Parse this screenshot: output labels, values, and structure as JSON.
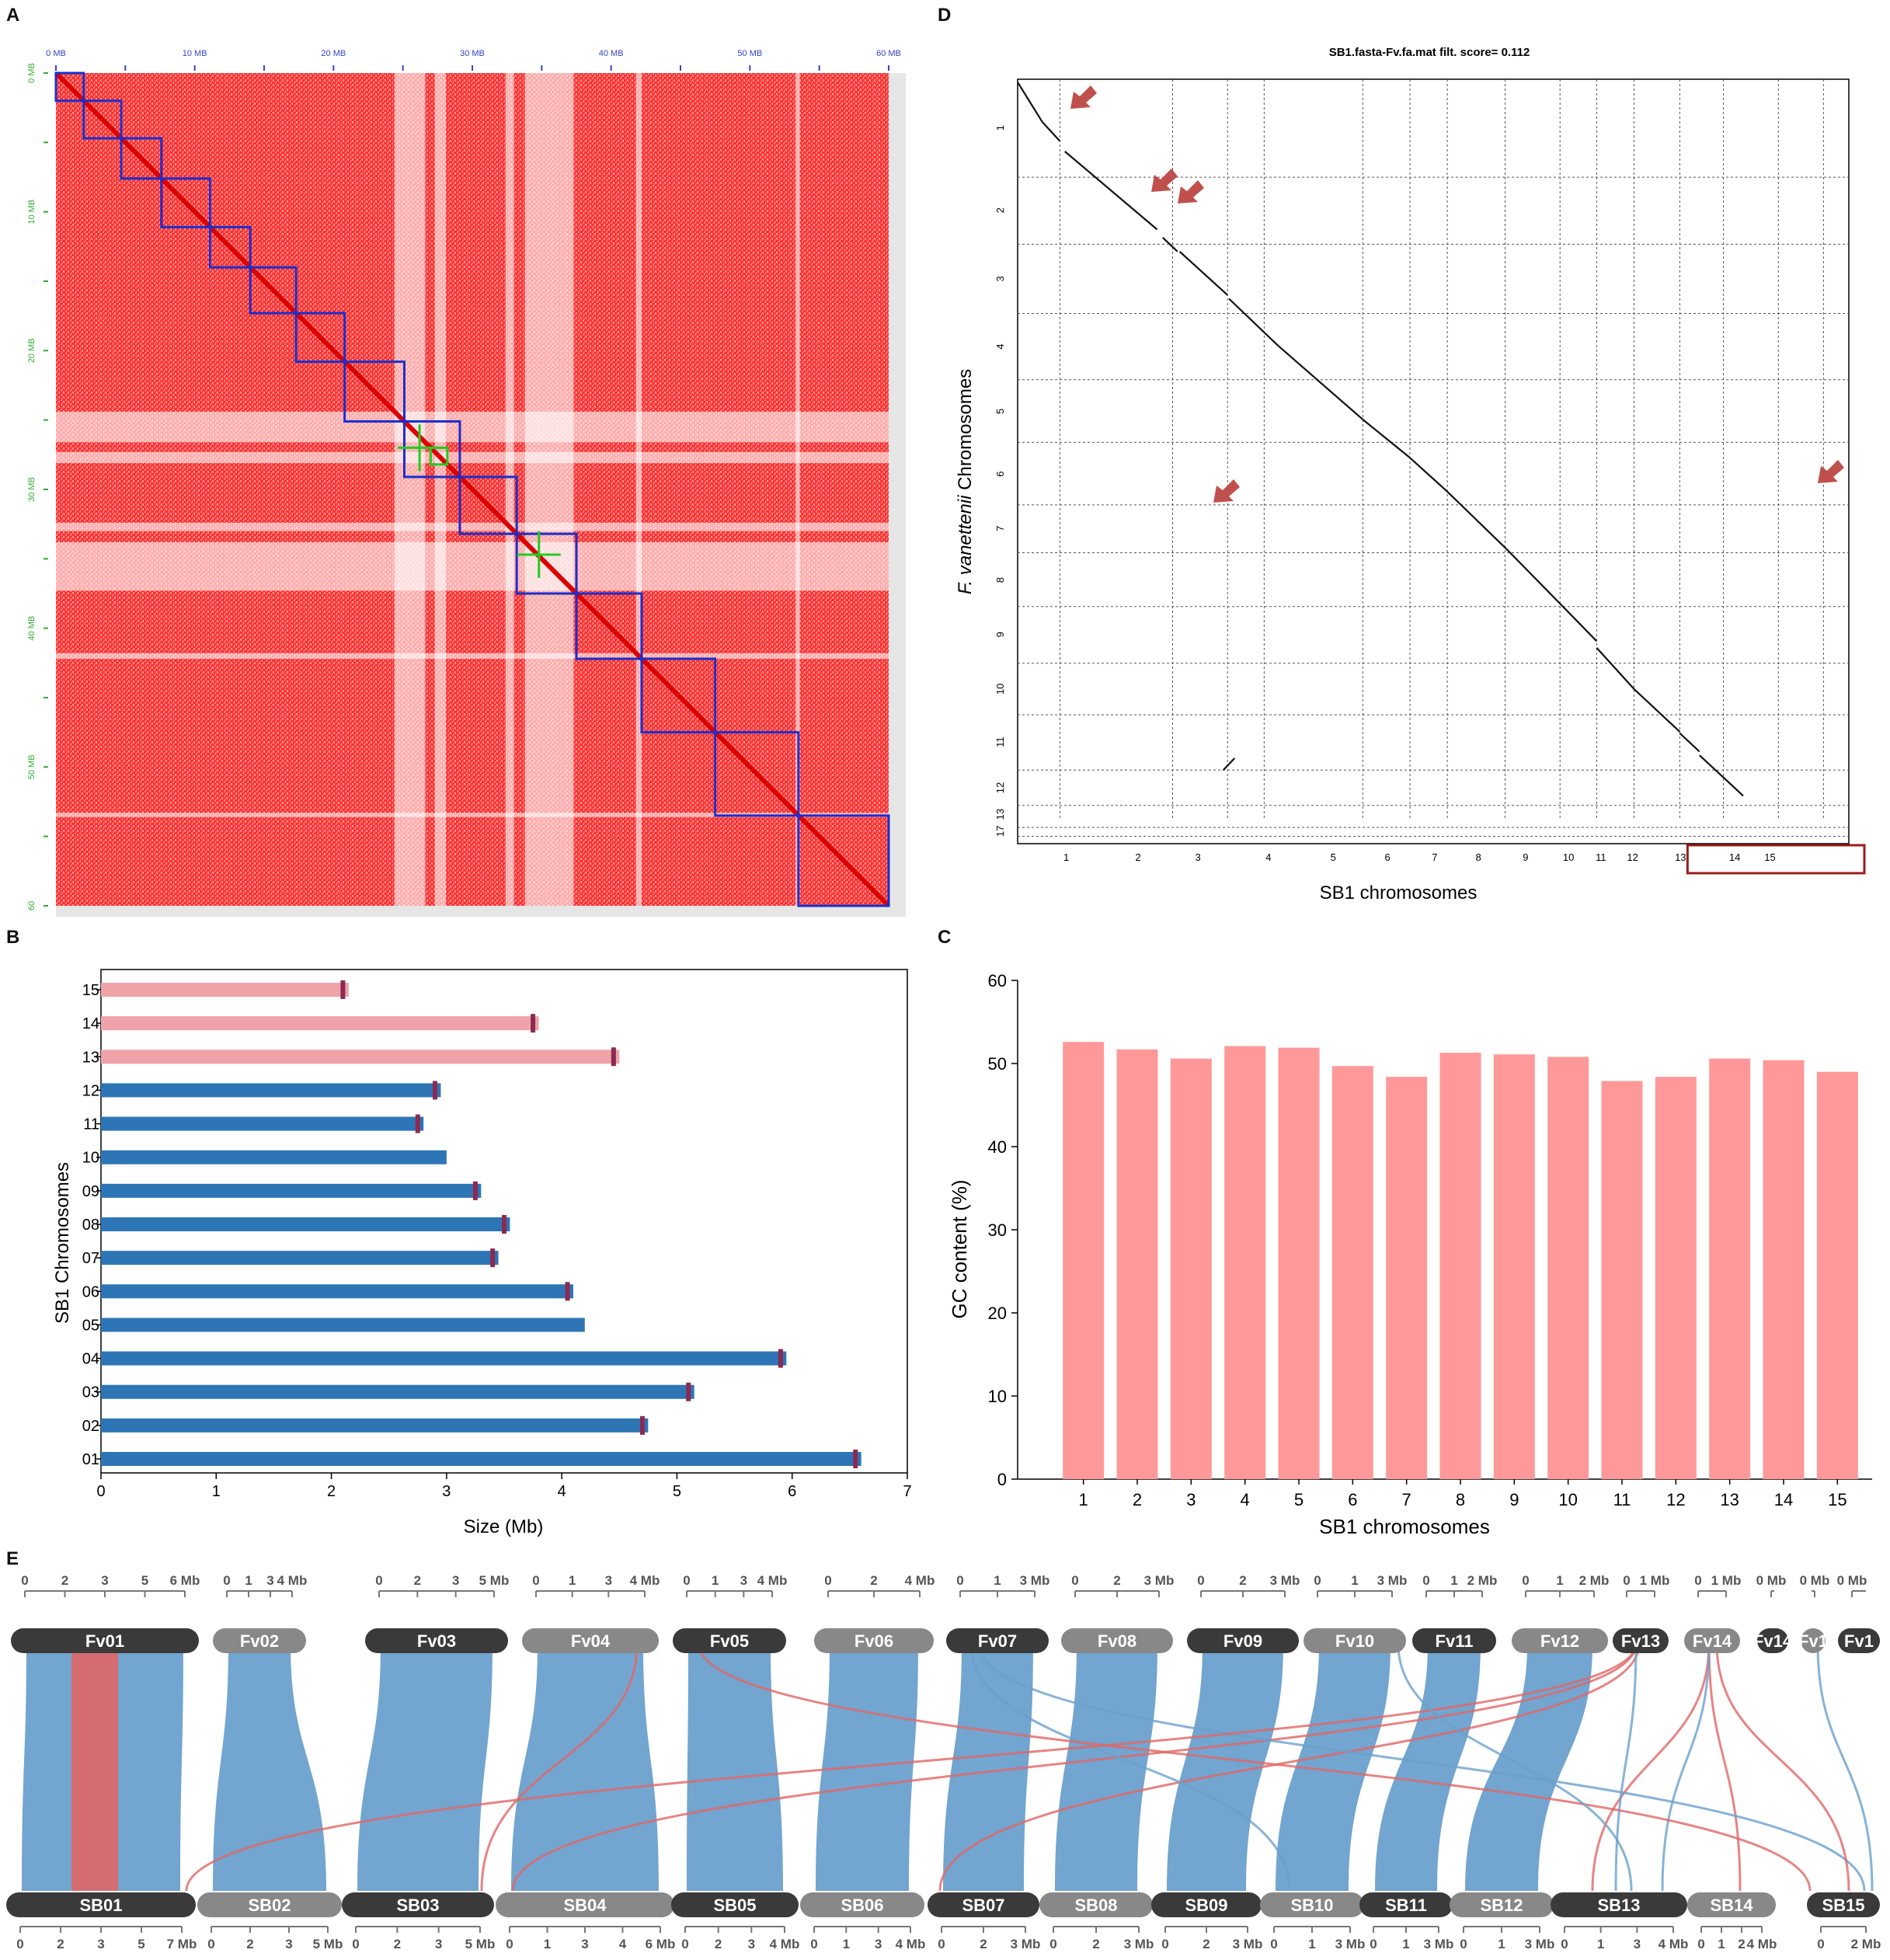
{
  "panels": {
    "A": {
      "letter": "A",
      "tick_labels": [
        "0 MB",
        "10 MB",
        "20 MB",
        "30 MB",
        "40 MB",
        "50 MB",
        "60 MB"
      ],
      "left_labels": [
        "0 MB",
        "10 MB",
        "20 MB",
        "30 MB",
        "40 MB",
        "50 MB",
        "60"
      ],
      "chrom_boundaries_mb": [
        0,
        2,
        4.7,
        7.6,
        11.1,
        14.0,
        17.3,
        20.8,
        25.1,
        29.1,
        33.2,
        37.5,
        42.2,
        47.5,
        53.5,
        60
      ]
    },
    "B": {
      "letter": "B"
    },
    "C": {
      "letter": "C"
    },
    "D": {
      "letter": "D"
    },
    "E": {
      "letter": "E"
    }
  },
  "chart_data": [
    {
      "panel": "B",
      "type": "bar",
      "orientation": "horizontal",
      "xlabel": "Size (Mb)",
      "ylabel": "SB1 Chromosomes",
      "xlim": [
        0,
        7
      ],
      "xticks": [
        "0",
        "1",
        "2",
        "3",
        "4",
        "5",
        "6",
        "7"
      ],
      "categories": [
        "01",
        "02",
        "03",
        "04",
        "05",
        "06",
        "07",
        "08",
        "09",
        "10",
        "11",
        "12",
        "13",
        "14",
        "15"
      ],
      "values": [
        6.6,
        4.75,
        5.15,
        5.95,
        4.2,
        4.1,
        3.45,
        3.55,
        3.3,
        3.0,
        2.8,
        2.95,
        4.5,
        3.8,
        2.15
      ],
      "centromere_mb": [
        6.55,
        4.7,
        5.1,
        5.9,
        null,
        4.05,
        3.4,
        3.5,
        3.25,
        null,
        2.75,
        2.9,
        4.45,
        3.75,
        2.1
      ],
      "colors": {
        "core": "#2e75b6",
        "accessory": "#efa3a8",
        "centromere": "#8b2a52"
      },
      "accessory_from": 13
    },
    {
      "panel": "C",
      "type": "bar",
      "xlabel": "SB1 chromosomes",
      "ylabel": "GC content (%)",
      "ylim": [
        0,
        60
      ],
      "yticks": [
        "0",
        "10",
        "20",
        "30",
        "40",
        "50",
        "60"
      ],
      "categories": [
        "1",
        "2",
        "3",
        "4",
        "5",
        "6",
        "7",
        "8",
        "9",
        "10",
        "11",
        "12",
        "13",
        "14",
        "15"
      ],
      "values": [
        52.6,
        51.7,
        50.6,
        52.1,
        51.9,
        49.7,
        48.4,
        51.3,
        51.1,
        50.8,
        47.9,
        48.4,
        50.6,
        50.4,
        49.0
      ],
      "color": "#ff9999"
    },
    {
      "panel": "D",
      "type": "scatter",
      "title": "SB1.fasta-Fv.fa.mat filt. score= 0.112",
      "xlabel": "SB1 chromosomes",
      "ylabel_italic": "F. vanettenii",
      "ylabel_rest": " Chromosomes",
      "x_labels": [
        "1",
        "2",
        "3",
        "4",
        "5",
        "6",
        "7",
        "8",
        "9",
        "10",
        "11",
        "12",
        "13",
        "14",
        "15"
      ],
      "y_labels": [
        "1",
        "2",
        "3",
        "4",
        "5",
        "6",
        "7",
        "8",
        "9",
        "10",
        "11",
        "12",
        "13",
        "17"
      ],
      "highlighted_x": [
        "13",
        "14",
        "15"
      ],
      "arrow_color": "#c0504d"
    },
    {
      "panel": "E",
      "type": "synteny",
      "top_chromosomes": [
        "Fv01",
        "Fv02",
        "Fv03",
        "Fv04",
        "Fv05",
        "Fv06",
        "Fv07",
        "Fv08",
        "Fv09",
        "Fv10",
        "Fv11",
        "Fv12",
        "Fv13",
        "Fv14",
        "Fv14",
        "Fv1",
        "Fv1"
      ],
      "top_scales": [
        [
          "0",
          "2",
          "3",
          "5",
          "6 Mb"
        ],
        [
          "0",
          "1",
          "3",
          "4 Mb"
        ],
        [
          "0",
          "2",
          "3",
          "5 Mb"
        ],
        [
          "0",
          "1",
          "3",
          "4 Mb"
        ],
        [
          "0",
          "1",
          "3",
          "4 Mb"
        ],
        [
          "0",
          "2",
          "4 Mb"
        ],
        [
          "0",
          "1",
          "3 Mb"
        ],
        [
          "0",
          "2",
          "3 Mb"
        ],
        [
          "0",
          "2",
          "3 Mb"
        ],
        [
          "0",
          "1",
          "3 Mb"
        ],
        [
          "0",
          "1",
          "2 Mb"
        ],
        [
          "0",
          "1",
          "2 Mb"
        ],
        [
          "0",
          "1 Mb"
        ],
        [
          "0",
          "1 Mb"
        ],
        [
          "0 Mb"
        ],
        [
          "0 Mb"
        ],
        [
          "0 Mb"
        ]
      ],
      "bottom_chromosomes": [
        "SB01",
        "SB02",
        "SB03",
        "SB04",
        "SB05",
        "SB06",
        "SB07",
        "SB08",
        "SB09",
        "SB10",
        "SB11",
        "SB12",
        "SB13",
        "SB14",
        "SB15"
      ],
      "bottom_scales": [
        [
          "0",
          "2",
          "3",
          "5",
          "7 Mb"
        ],
        [
          "0",
          "2",
          "3",
          "5 Mb"
        ],
        [
          "0",
          "2",
          "3",
          "5 Mb"
        ],
        [
          "0",
          "1",
          "3",
          "4",
          "6 Mb"
        ],
        [
          "0",
          "2",
          "3",
          "4 Mb"
        ],
        [
          "0",
          "1",
          "3",
          "4 Mb"
        ],
        [
          "0",
          "2",
          "3 Mb"
        ],
        [
          "0",
          "2",
          "3 Mb"
        ],
        [
          "0",
          "2",
          "3 Mb"
        ],
        [
          "0",
          "1",
          "3 Mb"
        ],
        [
          "0",
          "1",
          "3 Mb"
        ],
        [
          "0",
          "1",
          "3 Mb"
        ],
        [
          "0",
          "1",
          "3",
          "4 Mb"
        ],
        [
          "0",
          "1",
          "2",
          "4 Mb"
        ],
        [
          "0",
          "2 Mb"
        ]
      ],
      "colors": {
        "dark": "#3a3a3a",
        "light": "#888888",
        "blue": "#6aa0cc",
        "red": "#e06666"
      }
    }
  ]
}
